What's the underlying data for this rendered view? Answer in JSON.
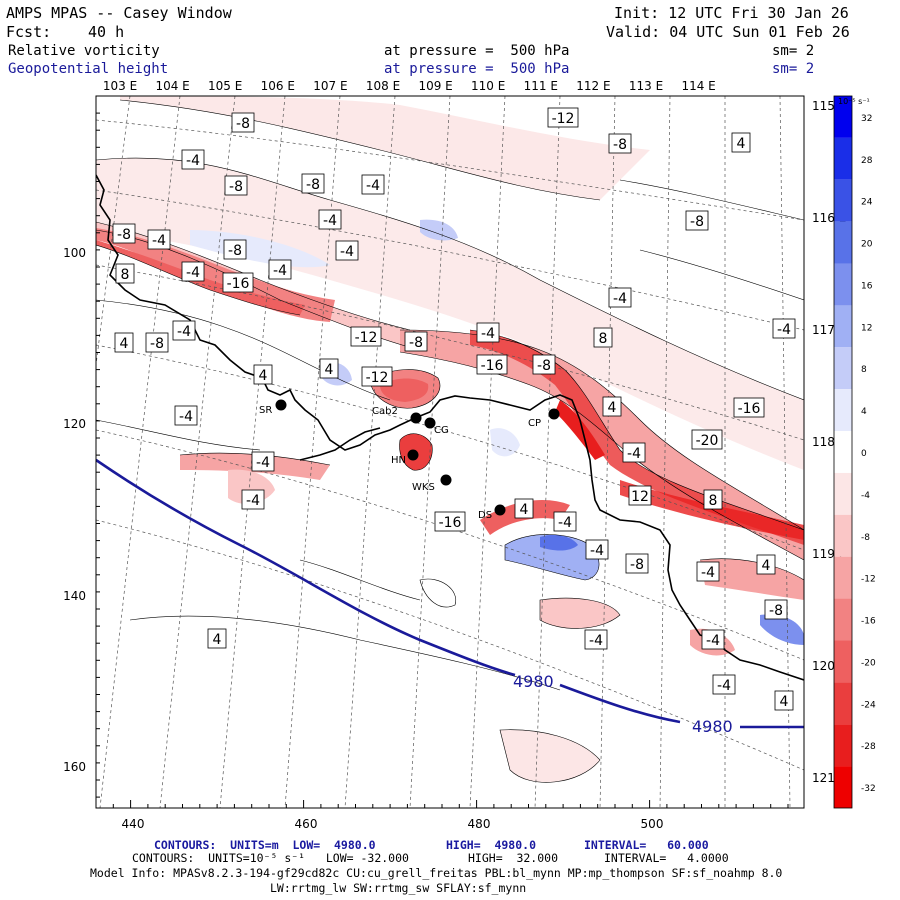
{
  "header": {
    "title": "AMPS MPAS -- Casey Window",
    "init": "Init: 12 UTC Fri 30 Jan 26",
    "fcst_label": "Fcst:",
    "fcst_value": "40 h",
    "valid": "Valid: 04 UTC Sun 01 Feb 26",
    "field1_name": "Relative vorticity",
    "field1_level": "at pressure =  500 hPa",
    "field1_sm": "sm= 2",
    "field2_name": "Geopotential height",
    "field2_level": "at pressure =  500 hPa",
    "field2_sm": "sm= 2"
  },
  "map": {
    "lon_labels_top": [
      "103 E",
      "104 E",
      "105 E",
      "106 E",
      "107 E",
      "108 E",
      "109 E",
      "110 E",
      "111 E",
      "112 E",
      "113 E",
      "114 E"
    ],
    "lon_labels_right": [
      "115 E",
      "116 E",
      "117 E",
      "118 E",
      "119 E",
      "120 E",
      "121 E"
    ],
    "x_ticks": [
      "440",
      "460",
      "480",
      "500"
    ],
    "y_ticks": [
      "100",
      "120",
      "140",
      "160"
    ],
    "contour_labels": [
      "-8",
      "-4",
      "-8",
      "-8",
      "-4",
      "-4",
      "-8",
      "-4",
      "-8",
      "-4",
      "-4",
      "8",
      "-4",
      "-16",
      "-12",
      "-8",
      "4",
      "-8",
      "-4",
      "-4",
      "4",
      "-8",
      "-4",
      "-12",
      "-8",
      "-4",
      "8",
      "4",
      "-12",
      "-16",
      "-8",
      "4",
      "-4",
      "-4",
      "-4",
      "4",
      "-16",
      "-20",
      "-4",
      "-16",
      "4",
      "12",
      "8",
      "-4",
      "-4",
      "-8",
      "-4",
      "4",
      "-8",
      "-4",
      "-4",
      "4",
      "-4",
      "4"
    ],
    "stations": [
      "SR",
      "Cab2",
      "CG",
      "HN",
      "WKS",
      "CP",
      "DS"
    ],
    "height_contour_label": "4980"
  },
  "colorbar": {
    "units": "10⁻⁵ s⁻¹",
    "labels": [
      "32",
      "28",
      "24",
      "20",
      "16",
      "12",
      "8",
      "4",
      "0",
      "-4",
      "-8",
      "-12",
      "-16",
      "-20",
      "-24",
      "-28",
      "-32"
    ],
    "colors": [
      "#0000ee",
      "#1a2ee8",
      "#3a52e6",
      "#5872e8",
      "#7c90ee",
      "#a0b0f4",
      "#c4ccf8",
      "#e6eafc",
      "#ffffff",
      "#fce6e6",
      "#fac6c6",
      "#f6a4a4",
      "#f28282",
      "#ee6060",
      "#ea3e3e",
      "#e81e1e",
      "#ee0000"
    ]
  },
  "footer": {
    "line1_a": "CONTOURS:  UNITS=m  LOW=  4980.0",
    "line1_b": "HIGH=  4980.0",
    "line1_c": "INTERVAL=   60.000",
    "line2_a": "CONTOURS:  UNITS=10⁻⁵ s⁻¹   LOW= -32.000",
    "line2_b": "HIGH=  32.000",
    "line2_c": "INTERVAL=   4.0000",
    "line3": "Model Info: MPASv8.2.3-194-gf29cd82c CU:cu_grell_freitas PBL:bl_mynn MP:mp_thompson SF:sf_noahmp 8.0",
    "line4": "LW:rrtmg_lw SW:rrtmg_sw SFLAY:sf_mynn"
  }
}
